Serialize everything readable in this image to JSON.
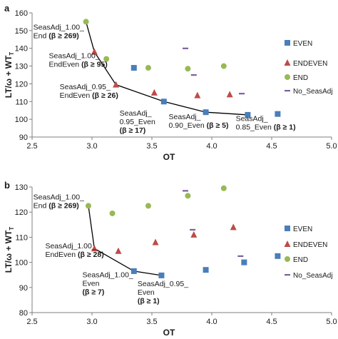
{
  "colors": {
    "even": "#4a7ebb",
    "endeven": "#be4b48",
    "end": "#98b954",
    "no_seasadj": "#7d60a0",
    "frontier": "#000000"
  },
  "chart_data": [
    {
      "panel": "a",
      "type": "scatter",
      "xlabel": "OT",
      "ylabel": "LT/ω + WT",
      "ylabel_sub": "T",
      "xlim": [
        2.5,
        5.0
      ],
      "ylim": [
        90,
        160
      ],
      "xticks": [
        2.5,
        3.0,
        3.5,
        4.0,
        4.5,
        5.0
      ],
      "xtick_labels": [
        "2.5",
        "3.0",
        "3.5",
        "4.0",
        "4.5",
        "5.0"
      ],
      "yticks": [
        90,
        100,
        110,
        120,
        130,
        140,
        150,
        160
      ],
      "ytick_labels": [
        "90",
        "100",
        "110",
        "120",
        "130",
        "140",
        "150",
        "160"
      ],
      "legend_position": "right",
      "series": [
        {
          "name": "EVEN",
          "key": "even",
          "marker": "square",
          "points": [
            [
              3.35,
              129
            ],
            [
              3.6,
              110
            ],
            [
              3.95,
              104
            ],
            [
              4.3,
              102.5
            ],
            [
              4.55,
              103
            ]
          ]
        },
        {
          "name": "ENDEVEN",
          "key": "endeven",
          "marker": "triangle",
          "points": [
            [
              3.02,
              138
            ],
            [
              3.2,
              119.5
            ],
            [
              3.52,
              115
            ],
            [
              3.88,
              113.5
            ],
            [
              4.15,
              114
            ]
          ]
        },
        {
          "name": "END",
          "key": "end",
          "marker": "circle",
          "points": [
            [
              2.95,
              155
            ],
            [
              3.12,
              134
            ],
            [
              3.47,
              129
            ],
            [
              3.8,
              128.5
            ],
            [
              4.1,
              130
            ]
          ]
        },
        {
          "name": "No_SeasAdj",
          "key": "no_seasadj",
          "marker": "dash",
          "points": [
            [
              3.78,
              140
            ],
            [
              3.85,
              125
            ],
            [
              4.25,
              114.5
            ]
          ]
        }
      ],
      "frontier": [
        [
          2.95,
          155
        ],
        [
          3.02,
          138
        ],
        [
          3.2,
          119.5
        ],
        [
          3.6,
          110
        ],
        [
          3.95,
          104
        ],
        [
          4.3,
          102.5
        ]
      ],
      "annotations": [
        {
          "lines": [
            "SeasAdj_1.00_",
            "End (β ≥ 269)"
          ],
          "at": [
            2.51,
            150.5
          ],
          "anchor": "start",
          "bold_suffix": [
            "",
            "(β ≥ 269)"
          ]
        },
        {
          "lines": [
            "SeasAdj_1.00_",
            "EndEven (β ≥ 95)"
          ],
          "at": [
            2.64,
            134.5
          ],
          "anchor": "start",
          "bold_suffix": [
            "",
            "(β ≥ 95)"
          ]
        },
        {
          "lines": [
            "SeasAdj_0.95_",
            "EndEven (β ≥ 26)"
          ],
          "at": [
            2.73,
            117
          ],
          "anchor": "start",
          "bold_suffix": [
            "",
            "(β ≥ 26)"
          ]
        },
        {
          "lines": [
            "SeasAdj_",
            "0.95_Even",
            "(β ≥ 17)"
          ],
          "at": [
            3.23,
            102
          ],
          "anchor": "start",
          "bold_suffix": [
            "",
            "",
            "(β ≥ 17)"
          ]
        },
        {
          "lines": [
            "SeasAdj_",
            "0.90_Even (β ≥ 5)"
          ],
          "at": [
            3.64,
            100
          ],
          "anchor": "start",
          "bold_suffix": [
            "",
            "(β ≥ 5)"
          ]
        },
        {
          "lines": [
            "SeasAdj_",
            "0.85_Even (β ≥ 1)"
          ],
          "at": [
            4.2,
            99
          ],
          "anchor": "start",
          "bold_suffix": [
            "",
            "(β ≥ 1)"
          ]
        }
      ]
    },
    {
      "panel": "b",
      "type": "scatter",
      "xlabel": "OT",
      "ylabel": "LT/ω + WT",
      "ylabel_sub": "T",
      "xlim": [
        2.5,
        5.0
      ],
      "ylim": [
        80,
        130
      ],
      "xticks": [
        2.5,
        3.0,
        3.5,
        4.0,
        4.5,
        5.0
      ],
      "xtick_labels": [
        "2.5",
        "3.0",
        "3.5",
        "4.0",
        "4.5",
        "5.0"
      ],
      "yticks": [
        80,
        90,
        100,
        110,
        120,
        130
      ],
      "ytick_labels": [
        "80",
        "90",
        "100",
        "110",
        "120",
        "130"
      ],
      "legend_position": "right",
      "series": [
        {
          "name": "EVEN",
          "key": "even",
          "marker": "square",
          "points": [
            [
              3.35,
              96.5
            ],
            [
              3.58,
              94.8
            ],
            [
              3.95,
              97
            ],
            [
              4.27,
              100
            ],
            [
              4.55,
              102.5
            ]
          ]
        },
        {
          "name": "ENDEVEN",
          "key": "endeven",
          "marker": "triangle",
          "points": [
            [
              3.02,
              105.5
            ],
            [
              3.22,
              104.5
            ],
            [
              3.53,
              108
            ],
            [
              3.85,
              111
            ],
            [
              4.18,
              114
            ]
          ]
        },
        {
          "name": "END",
          "key": "end",
          "marker": "circle",
          "points": [
            [
              2.97,
              122.5
            ],
            [
              3.17,
              119.5
            ],
            [
              3.47,
              122.5
            ],
            [
              3.8,
              126.5
            ],
            [
              4.1,
              129.5
            ]
          ]
        },
        {
          "name": "No_SeasAdj",
          "key": "no_seasadj",
          "marker": "dash",
          "points": [
            [
              3.78,
              128.5
            ],
            [
              3.84,
              113
            ],
            [
              4.24,
              102.5
            ]
          ]
        }
      ],
      "frontier": [
        [
          2.97,
          122.5
        ],
        [
          3.02,
          105.5
        ],
        [
          3.35,
          96.5
        ],
        [
          3.58,
          94.8
        ]
      ],
      "annotations": [
        {
          "lines": [
            "SeasAdj_1.00_",
            "End (β ≥ 269)"
          ],
          "at": [
            2.51,
            125
          ],
          "anchor": "start",
          "bold_suffix": [
            "",
            "(β ≥ 269)"
          ]
        },
        {
          "lines": [
            "SeasAdj_1.00_",
            "EndEven (β ≥ 28)"
          ],
          "at": [
            2.61,
            105.5
          ],
          "anchor": "start",
          "bold_suffix": [
            "",
            "(β ≥ 28)"
          ]
        },
        {
          "lines": [
            "SeasAdj_1.00_",
            "Even",
            "(β ≥ 7)"
          ],
          "at": [
            2.92,
            94
          ],
          "anchor": "start",
          "bold_suffix": [
            "",
            "",
            "(β ≥ 7)"
          ]
        },
        {
          "lines": [
            "SeasAdj_0.95_",
            "Even",
            "(β ≥ 1)"
          ],
          "at": [
            3.38,
            90.5
          ],
          "anchor": "start",
          "bold_suffix": [
            "",
            "",
            "(β ≥ 1)"
          ]
        }
      ]
    }
  ]
}
